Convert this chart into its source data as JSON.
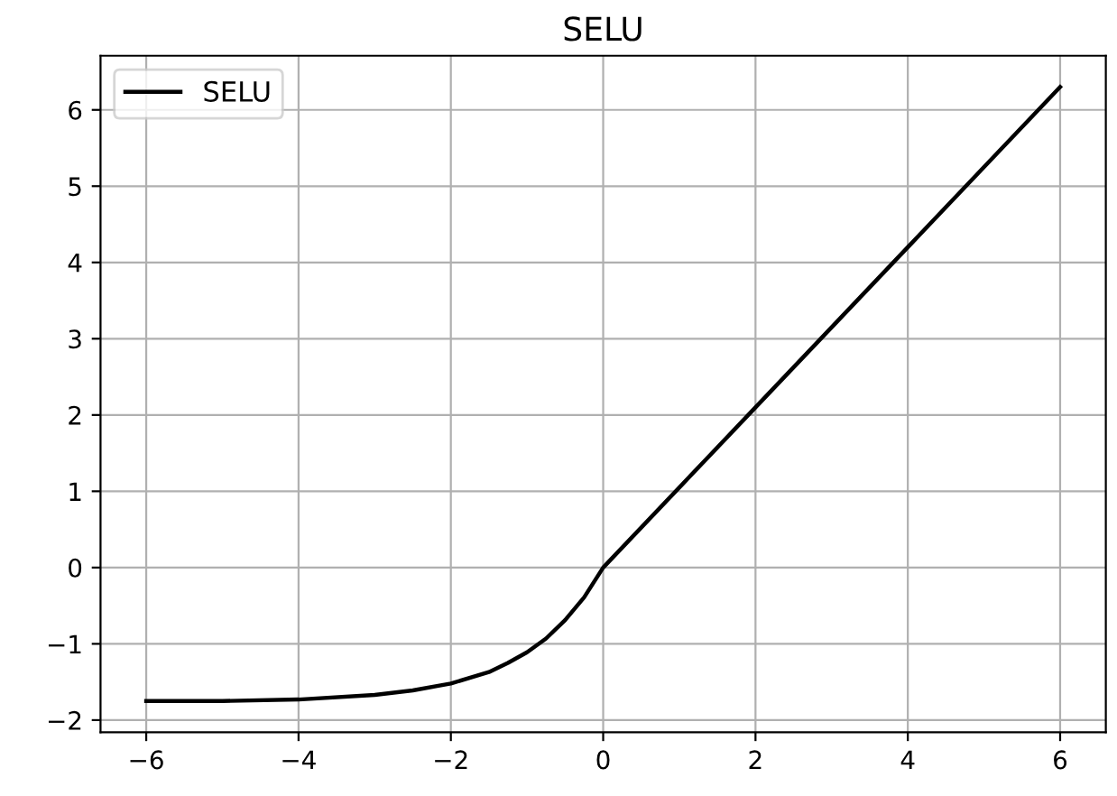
{
  "chart_data": {
    "type": "line",
    "title": "SELU",
    "x": [
      -6,
      -5,
      -4,
      -3,
      -2.5,
      -2,
      -1.5,
      -1.25,
      -1,
      -0.75,
      -0.5,
      -0.25,
      0,
      2,
      4,
      6
    ],
    "series": [
      {
        "name": "SELU",
        "color": "#000000",
        "values": [
          -1.75,
          -1.75,
          -1.73,
          -1.67,
          -1.61,
          -1.52,
          -1.37,
          -1.25,
          -1.11,
          -0.93,
          -0.69,
          -0.39,
          0,
          2.1,
          4.2,
          6.3
        ]
      }
    ],
    "xlim": [
      -6.6,
      6.6
    ],
    "ylim": [
      -2.16,
      6.71
    ],
    "xticks": [
      {
        "value": -6,
        "label": "−6"
      },
      {
        "value": -4,
        "label": "−4"
      },
      {
        "value": -2,
        "label": "−2"
      },
      0,
      2,
      4,
      6
    ],
    "yticks": [
      {
        "value": -2,
        "label": "−2"
      },
      {
        "value": -1,
        "label": "−1"
      },
      0,
      1,
      2,
      3,
      4,
      5,
      6
    ],
    "grid": true,
    "legend": "top left",
    "line_style": "solid",
    "marker": "none"
  }
}
